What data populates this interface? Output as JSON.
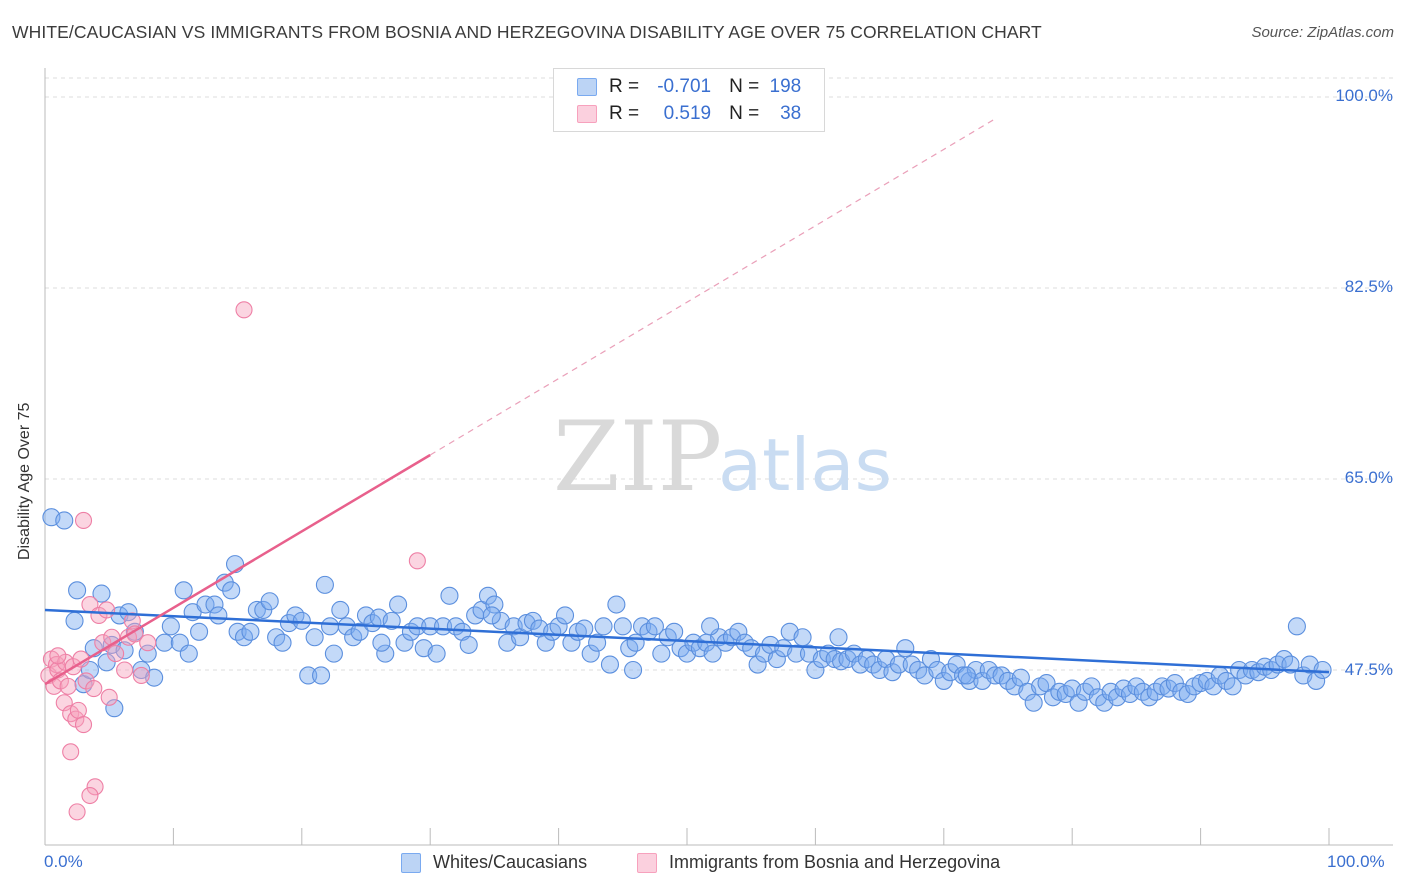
{
  "title": "WHITE/CAUCASIAN VS IMMIGRANTS FROM BOSNIA AND HERZEGOVINA DISABILITY AGE OVER 75 CORRELATION CHART",
  "source": "Source: ZipAtlas.com",
  "watermark": {
    "zip": "ZIP",
    "atlas": "atlas"
  },
  "legend": {
    "rows": [
      {
        "r_label": "R =",
        "r_value": "-0.701",
        "n_label": "N =",
        "n_value": "198",
        "color": "#7aaaf0"
      },
      {
        "r_label": "R =",
        "r_value": "0.519",
        "n_label": "N =",
        "n_value": "38",
        "color": "#f7a1bd"
      }
    ]
  },
  "chart_data": {
    "type": "scatter",
    "title": "WHITE/CAUCASIAN VS IMMIGRANTS FROM BOSNIA AND HERZEGOVINA DISABILITY AGE OVER 75 CORRELATION CHART",
    "xlabel": "",
    "ylabel": "Disability Age Over 75",
    "xlim": [
      0,
      100
    ],
    "ylim": [
      29,
      102
    ],
    "x_tick_labels": [
      "0.0%",
      "100.0%"
    ],
    "y_tick_labels": [
      {
        "value": 100.0,
        "label": "100.0%"
      },
      {
        "value": 82.5,
        "label": "82.5%"
      },
      {
        "value": 65.0,
        "label": "65.0%"
      },
      {
        "value": 47.5,
        "label": "47.5%"
      }
    ],
    "grid": true,
    "legend_position": "bottom",
    "series": [
      {
        "name": "Whites/Caucasians",
        "color": "#7aaaf0",
        "edge": "#5b8fde",
        "trend": {
          "x": [
            0,
            100
          ],
          "y": [
            53.0,
            47.3
          ]
        },
        "points": [
          [
            0.5,
            61.5
          ],
          [
            1.5,
            61.2
          ],
          [
            2.3,
            52.0
          ],
          [
            2.5,
            54.8
          ],
          [
            3.0,
            46.2
          ],
          [
            3.5,
            47.5
          ],
          [
            3.8,
            49.5
          ],
          [
            4.4,
            54.5
          ],
          [
            4.8,
            48.2
          ],
          [
            5.2,
            49.8
          ],
          [
            5.4,
            44.0
          ],
          [
            5.8,
            52.5
          ],
          [
            6.2,
            49.3
          ],
          [
            6.5,
            52.8
          ],
          [
            7.0,
            51.0
          ],
          [
            7.5,
            47.5
          ],
          [
            8.0,
            49.0
          ],
          [
            8.5,
            46.8
          ],
          [
            9.3,
            50.0
          ],
          [
            9.8,
            51.5
          ],
          [
            10.5,
            50.0
          ],
          [
            10.8,
            54.8
          ],
          [
            11.5,
            52.8
          ],
          [
            12.0,
            51.0
          ],
          [
            12.5,
            53.5
          ],
          [
            13.2,
            53.5
          ],
          [
            13.5,
            52.5
          ],
          [
            14.0,
            55.5
          ],
          [
            14.5,
            54.8
          ],
          [
            15.0,
            51.0
          ],
          [
            15.5,
            50.5
          ],
          [
            16.0,
            51.0
          ],
          [
            16.5,
            53.0
          ],
          [
            17.0,
            53.0
          ],
          [
            17.5,
            53.8
          ],
          [
            18.0,
            50.5
          ],
          [
            18.5,
            50.0
          ],
          [
            19.0,
            51.8
          ],
          [
            19.5,
            52.5
          ],
          [
            20.0,
            52.0
          ],
          [
            20.5,
            47.0
          ],
          [
            21.0,
            50.5
          ],
          [
            21.5,
            47.0
          ],
          [
            21.8,
            55.3
          ],
          [
            22.5,
            49.0
          ],
          [
            23.0,
            53.0
          ],
          [
            23.5,
            51.5
          ],
          [
            24.0,
            50.5
          ],
          [
            24.5,
            51.0
          ],
          [
            25.0,
            52.5
          ],
          [
            25.5,
            51.8
          ],
          [
            26.0,
            52.3
          ],
          [
            26.5,
            49.0
          ],
          [
            27.0,
            52.0
          ],
          [
            27.5,
            53.5
          ],
          [
            28.0,
            50.0
          ],
          [
            28.5,
            51.0
          ],
          [
            29.0,
            51.5
          ],
          [
            29.5,
            49.5
          ],
          [
            30.0,
            51.5
          ],
          [
            30.5,
            49.0
          ],
          [
            31.0,
            51.5
          ],
          [
            31.5,
            54.3
          ],
          [
            32.0,
            51.5
          ],
          [
            32.5,
            51.0
          ],
          [
            33.0,
            49.8
          ],
          [
            33.5,
            52.5
          ],
          [
            34.0,
            53.0
          ],
          [
            34.5,
            54.3
          ],
          [
            35.0,
            53.5
          ],
          [
            35.5,
            52.0
          ],
          [
            36.0,
            50.0
          ],
          [
            36.5,
            51.5
          ],
          [
            37.0,
            50.5
          ],
          [
            37.5,
            51.8
          ],
          [
            38.0,
            52.0
          ],
          [
            38.5,
            51.3
          ],
          [
            39.0,
            50.0
          ],
          [
            39.5,
            51.0
          ],
          [
            40.0,
            51.5
          ],
          [
            40.5,
            52.5
          ],
          [
            41.0,
            50.0
          ],
          [
            41.5,
            51.0
          ],
          [
            42.0,
            51.3
          ],
          [
            42.5,
            49.0
          ],
          [
            43.0,
            50.0
          ],
          [
            43.5,
            51.5
          ],
          [
            44.0,
            48.0
          ],
          [
            44.5,
            53.5
          ],
          [
            45.0,
            51.5
          ],
          [
            45.5,
            49.5
          ],
          [
            46.0,
            50.0
          ],
          [
            46.5,
            51.5
          ],
          [
            47.0,
            51.0
          ],
          [
            47.5,
            51.5
          ],
          [
            48.0,
            49.0
          ],
          [
            48.5,
            50.5
          ],
          [
            49.0,
            51.0
          ],
          [
            49.5,
            49.5
          ],
          [
            50.0,
            49.0
          ],
          [
            50.5,
            50.0
          ],
          [
            51.0,
            49.5
          ],
          [
            51.5,
            50.0
          ],
          [
            52.0,
            49.0
          ],
          [
            52.5,
            50.5
          ],
          [
            53.0,
            50.0
          ],
          [
            53.5,
            50.5
          ],
          [
            54.0,
            51.0
          ],
          [
            54.5,
            50.0
          ],
          [
            55.0,
            49.5
          ],
          [
            55.5,
            48.0
          ],
          [
            56.0,
            49.0
          ],
          [
            56.5,
            49.8
          ],
          [
            57.0,
            48.5
          ],
          [
            57.5,
            49.5
          ],
          [
            58.0,
            51.0
          ],
          [
            58.5,
            49.0
          ],
          [
            59.0,
            50.5
          ],
          [
            59.5,
            49.0
          ],
          [
            60.0,
            47.5
          ],
          [
            60.5,
            48.5
          ],
          [
            61.0,
            49.0
          ],
          [
            61.5,
            48.5
          ],
          [
            62.0,
            48.3
          ],
          [
            62.5,
            48.5
          ],
          [
            63.0,
            49.0
          ],
          [
            63.5,
            48.0
          ],
          [
            64.0,
            48.5
          ],
          [
            64.5,
            48.0
          ],
          [
            65.0,
            47.5
          ],
          [
            65.5,
            48.5
          ],
          [
            66.0,
            47.3
          ],
          [
            66.5,
            48.0
          ],
          [
            67.0,
            49.5
          ],
          [
            67.5,
            48.0
          ],
          [
            68.0,
            47.5
          ],
          [
            68.5,
            47.0
          ],
          [
            69.0,
            48.5
          ],
          [
            69.5,
            47.5
          ],
          [
            70.0,
            46.5
          ],
          [
            70.5,
            47.3
          ],
          [
            71.0,
            48.0
          ],
          [
            71.5,
            47.0
          ],
          [
            72.0,
            46.5
          ],
          [
            72.5,
            47.5
          ],
          [
            73.0,
            46.5
          ],
          [
            73.5,
            47.5
          ],
          [
            74.0,
            47.0
          ],
          [
            74.5,
            47.0
          ],
          [
            75.0,
            46.5
          ],
          [
            75.5,
            46.0
          ],
          [
            76.0,
            46.8
          ],
          [
            76.5,
            45.5
          ],
          [
            77.0,
            44.5
          ],
          [
            77.5,
            46.0
          ],
          [
            78.0,
            46.3
          ],
          [
            78.5,
            45.0
          ],
          [
            79.0,
            45.5
          ],
          [
            79.5,
            45.3
          ],
          [
            80.0,
            45.8
          ],
          [
            80.5,
            44.5
          ],
          [
            81.0,
            45.5
          ],
          [
            81.5,
            46.0
          ],
          [
            82.0,
            45.0
          ],
          [
            82.5,
            44.5
          ],
          [
            83.0,
            45.5
          ],
          [
            83.5,
            45.0
          ],
          [
            84.0,
            45.8
          ],
          [
            84.5,
            45.3
          ],
          [
            85.0,
            46.0
          ],
          [
            85.5,
            45.5
          ],
          [
            86.0,
            45.0
          ],
          [
            86.5,
            45.5
          ],
          [
            87.0,
            46.0
          ],
          [
            87.5,
            45.8
          ],
          [
            88.0,
            46.3
          ],
          [
            88.5,
            45.5
          ],
          [
            89.0,
            45.3
          ],
          [
            89.5,
            46.0
          ],
          [
            90.0,
            46.3
          ],
          [
            90.5,
            46.5
          ],
          [
            91.0,
            46.0
          ],
          [
            91.5,
            47.0
          ],
          [
            92.0,
            46.5
          ],
          [
            92.5,
            46.0
          ],
          [
            93.0,
            47.5
          ],
          [
            93.5,
            47.0
          ],
          [
            94.0,
            47.5
          ],
          [
            94.5,
            47.3
          ],
          [
            95.0,
            47.8
          ],
          [
            95.5,
            47.5
          ],
          [
            96.0,
            48.0
          ],
          [
            96.5,
            48.5
          ],
          [
            97.0,
            48.0
          ],
          [
            97.5,
            51.5
          ],
          [
            98.0,
            47.0
          ],
          [
            98.5,
            48.0
          ],
          [
            99.0,
            46.5
          ],
          [
            99.5,
            47.5
          ],
          [
            14.8,
            57.2
          ],
          [
            61.8,
            50.5
          ],
          [
            34.8,
            52.5
          ],
          [
            51.8,
            51.5
          ],
          [
            26.2,
            50.0
          ],
          [
            71.8,
            47.0
          ],
          [
            45.8,
            47.5
          ],
          [
            11.2,
            49.0
          ],
          [
            22.2,
            51.5
          ]
        ]
      },
      {
        "name": "Immigrants from Bosnia and Herzegovina",
        "color": "#f7a1bd",
        "edge": "#ee7fa5",
        "trend": {
          "x": [
            0,
            30
          ],
          "y": [
            46.2,
            67.2
          ]
        },
        "trend_ext": {
          "x": [
            30,
            74
          ],
          "y": [
            67.2,
            98.0
          ]
        },
        "points": [
          [
            0.3,
            47.0
          ],
          [
            0.5,
            48.5
          ],
          [
            0.7,
            46.0
          ],
          [
            0.9,
            48.0
          ],
          [
            1.0,
            47.5
          ],
          [
            1.2,
            46.5
          ],
          [
            1.5,
            44.5
          ],
          [
            1.6,
            48.2
          ],
          [
            1.8,
            46.0
          ],
          [
            2.0,
            43.5
          ],
          [
            2.2,
            47.8
          ],
          [
            2.4,
            43.0
          ],
          [
            2.6,
            43.8
          ],
          [
            2.8,
            48.5
          ],
          [
            3.0,
            42.5
          ],
          [
            3.2,
            46.5
          ],
          [
            3.5,
            53.5
          ],
          [
            3.8,
            45.8
          ],
          [
            3.9,
            36.8
          ],
          [
            4.2,
            52.5
          ],
          [
            4.5,
            50.0
          ],
          [
            4.8,
            53.0
          ],
          [
            5.0,
            45.0
          ],
          [
            5.2,
            50.5
          ],
          [
            5.5,
            49.0
          ],
          [
            6.2,
            47.5
          ],
          [
            6.5,
            50.5
          ],
          [
            6.8,
            52.0
          ],
          [
            7.0,
            50.8
          ],
          [
            7.5,
            47.0
          ],
          [
            8.0,
            50.0
          ],
          [
            3.0,
            61.2
          ],
          [
            15.5,
            80.5
          ],
          [
            29.0,
            57.5
          ],
          [
            2.5,
            34.5
          ],
          [
            3.5,
            36.0
          ],
          [
            2.0,
            40.0
          ],
          [
            1.0,
            48.8
          ]
        ]
      }
    ]
  },
  "axis": {
    "ylabel": "Disability Age Over 75",
    "x_left": "0.0%",
    "x_right": "100.0%",
    "y_ticks": [
      "100.0%",
      "82.5%",
      "65.0%",
      "47.5%"
    ]
  },
  "bottom_legend": {
    "items": [
      {
        "label": "Whites/Caucasians",
        "color": "#7aaaf0"
      },
      {
        "label": "Immigrants from Bosnia and Herzegovina",
        "color": "#f7a1bd"
      }
    ]
  }
}
